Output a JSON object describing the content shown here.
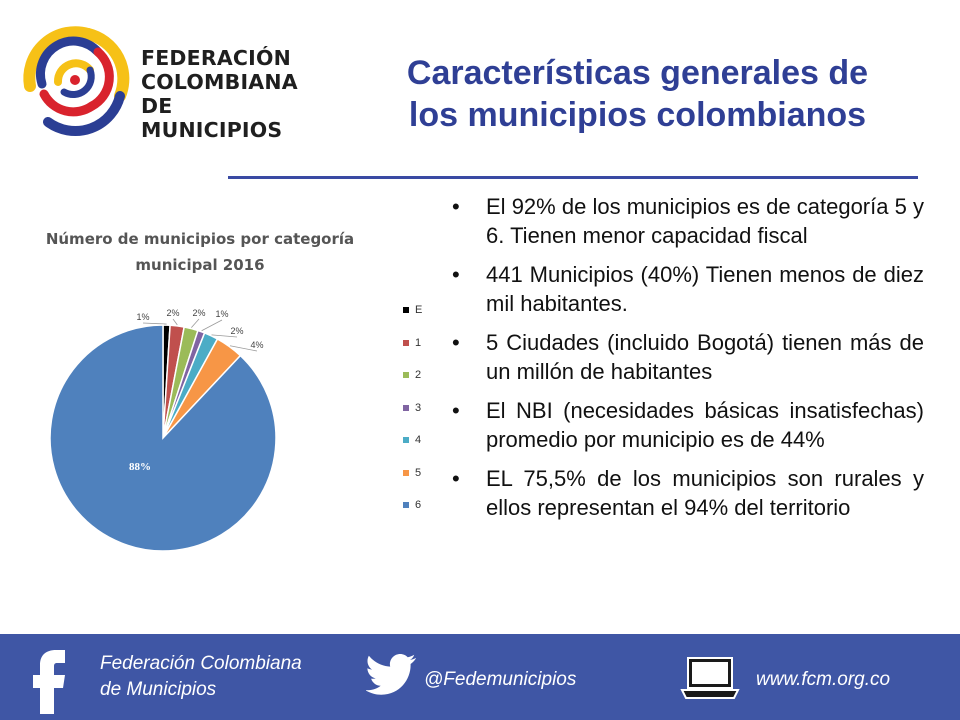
{
  "header": {
    "logo_lines": [
      "FEDERACIÓN",
      "COLOMBIANA",
      "DE MUNICIPIOS"
    ],
    "logo_icon": "fcm-spiral-logo",
    "title_lines": [
      "Características generales de",
      "los municipios colombianos"
    ]
  },
  "colors": {
    "title": "#2f3f95",
    "footer_bg": "#3f56a5",
    "rule": "#3a4aa3"
  },
  "chart_data": {
    "type": "pie",
    "title": "Número de municipios por categoría municipal 2016",
    "title_lines": [
      "Número de municipios por categoría",
      "municipal  2016"
    ],
    "categories": [
      "E",
      "1",
      "2",
      "3",
      "4",
      "5",
      "6"
    ],
    "values": [
      1,
      2,
      2,
      1,
      2,
      4,
      88
    ],
    "labels": [
      "1%",
      "2%",
      "2%",
      "1%",
      "2%",
      "4%",
      "88%"
    ],
    "colors": [
      "#000000",
      "#c0504d",
      "#9bbb59",
      "#8064a2",
      "#4bacc6",
      "#f79646",
      "#4f81bd"
    ],
    "legend": "right"
  },
  "bullets": [
    "El 92% de los municipios es de categoría 5 y 6. Tienen menor capacidad fiscal",
    "441 Municipios (40%) Tienen menos de diez mil habitantes.",
    "5 Ciudades (incluido Bogotá) tienen más de un millón de habitantes",
    "El NBI (necesidades básicas insatisfechas) promedio por municipio es de 44%",
    "EL 75,5% de los municipios son rurales y ellos representan el 94% del territorio"
  ],
  "footer": {
    "facebook_line1": "Federación Colombiana",
    "facebook_line2": "de Municipios",
    "twitter": "@Fedemunicipios",
    "website": "www.fcm.org.co",
    "icons": [
      "facebook-icon",
      "twitter-icon",
      "laptop-icon"
    ]
  }
}
